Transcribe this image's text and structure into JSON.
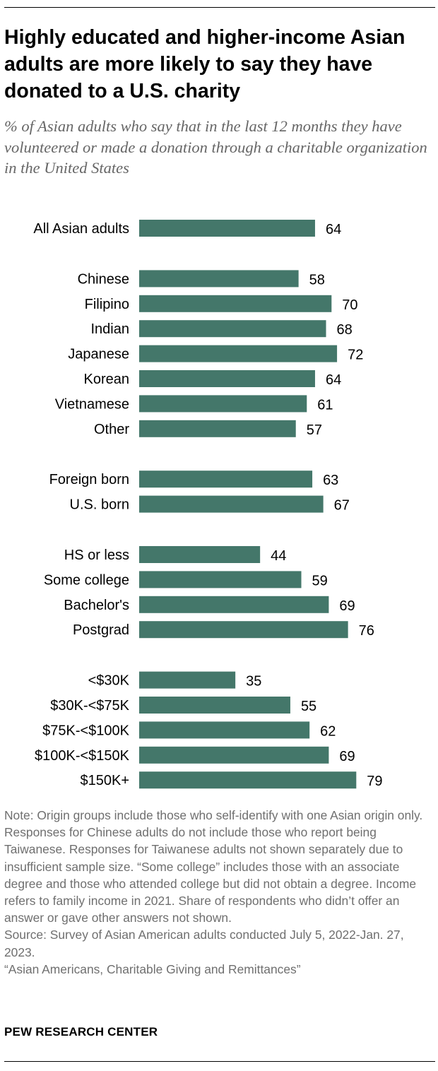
{
  "title": "Highly educated and higher-income Asian adults are more likely to say they have donated to a U.S. charity",
  "subtitle": "% of Asian adults who say that in the last 12 months they have volunteered or made a donation through a charitable organization in the United States",
  "chart_data": {
    "type": "bar",
    "orientation": "horizontal",
    "bar_color": "#44776a",
    "xlim": [
      0,
      100
    ],
    "grid": false,
    "groups": [
      {
        "categories": [
          "All Asian adults"
        ],
        "values": [
          64
        ]
      },
      {
        "categories": [
          "Chinese",
          "Filipino",
          "Indian",
          "Japanese",
          "Korean",
          "Vietnamese",
          "Other"
        ],
        "values": [
          58,
          70,
          68,
          72,
          64,
          61,
          57
        ]
      },
      {
        "categories": [
          "Foreign born",
          "U.S. born"
        ],
        "values": [
          63,
          67
        ]
      },
      {
        "categories": [
          "HS or less",
          "Some college",
          "Bachelor's",
          "Postgrad"
        ],
        "values": [
          44,
          59,
          69,
          76
        ]
      },
      {
        "categories": [
          "<$30K",
          "$30K-<$75K",
          "$75K-<$100K",
          "$100K-<$150K",
          "$150K+"
        ],
        "values": [
          35,
          55,
          62,
          69,
          79
        ]
      }
    ]
  },
  "notes": {
    "note": "Note: Origin groups include those who self-identify with one Asian origin only. Responses for Chinese adults do not include those who report being Taiwanese. Responses for Taiwanese adults not shown separately due to insufficient sample size. “Some college” includes those with an associate degree and those who attended college but did not obtain a degree. Income refers to family income in 2021. Share of respondents who didn’t offer an answer or gave other answers not shown.",
    "source": "Source: Survey of Asian American adults conducted July 5, 2022-Jan. 27, 2023.",
    "report": "“Asian Americans, Charitable Giving and Remittances”"
  },
  "branding": "PEW RESEARCH CENTER"
}
